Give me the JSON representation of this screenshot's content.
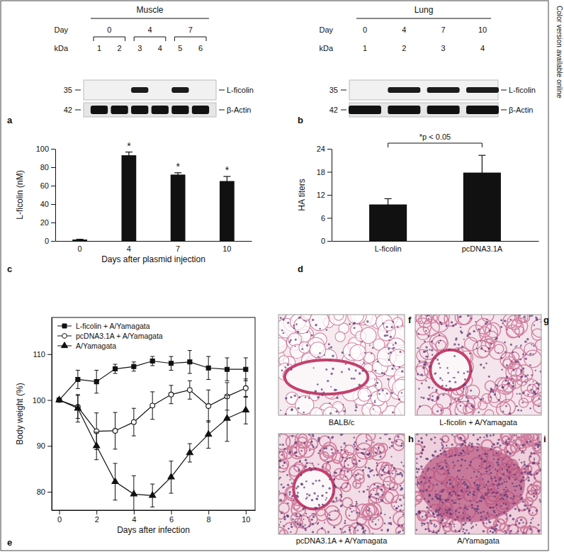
{
  "side_note": "Color version available online",
  "blots": [
    {
      "panel": "a",
      "tissue": "Muscle",
      "day_label": "Day",
      "kda_label": "kDa",
      "days": [
        0,
        4,
        7
      ],
      "lanes": [
        [
          1,
          2
        ],
        [
          3,
          4
        ],
        [
          5,
          6
        ]
      ],
      "rows": [
        {
          "kda": 35,
          "label": "L-ficolin",
          "bands": [
            false,
            false,
            true,
            false,
            true,
            false
          ]
        },
        {
          "kda": 42,
          "label": "β-Actin",
          "bands": [
            true,
            true,
            true,
            true,
            true,
            true
          ]
        }
      ]
    },
    {
      "panel": "b",
      "tissue": "Lung",
      "day_label": "Day",
      "kda_label": "kDa",
      "days": [
        0,
        4,
        7,
        10
      ],
      "lanes": [
        [
          1
        ],
        [
          2
        ],
        [
          3
        ],
        [
          4
        ]
      ],
      "rows": [
        {
          "kda": 35,
          "label": "L-ficolin",
          "bands": [
            false,
            true,
            true,
            true
          ]
        },
        {
          "kda": 42,
          "label": "β-Actin",
          "bands": [
            true,
            true,
            true,
            true
          ]
        }
      ]
    }
  ],
  "chart_data": [
    {
      "panel": "c",
      "type": "bar",
      "categories": [
        0,
        4,
        7,
        10
      ],
      "values": [
        1.5,
        93,
        72,
        65
      ],
      "errors": [
        0.3,
        3.5,
        2,
        5
      ],
      "significance": [
        null,
        "*",
        "*",
        "*"
      ],
      "ylim": [
        0,
        100
      ],
      "yticks": [
        0,
        20,
        40,
        60,
        80,
        100
      ],
      "y_label": "L-ficolin (nM)",
      "x_label": "Days after plasmid injection",
      "color": "#111111"
    },
    {
      "panel": "d",
      "type": "bar",
      "categories": [
        "L-ficolin",
        "pcDNA3.1A"
      ],
      "values": [
        9.5,
        17.8
      ],
      "errors": [
        1.5,
        4.5
      ],
      "ylim": [
        0,
        24
      ],
      "yticks": [
        0,
        6,
        12,
        18,
        24
      ],
      "y_label": "HA titers",
      "annotation": "*p < 0.05",
      "color": "#111111"
    },
    {
      "panel": "e",
      "type": "line",
      "x": [
        0,
        1,
        2,
        3,
        4,
        5,
        6,
        7,
        8,
        9,
        10
      ],
      "xlim": [
        -0.4,
        10.5
      ],
      "xticks": [
        0,
        2,
        4,
        6,
        8,
        10
      ],
      "ylim": [
        76,
        118
      ],
      "yticks": [
        80,
        90,
        100,
        110
      ],
      "y_label": "Body weight (%)",
      "x_label": "Days after infection",
      "legend": "upper left",
      "series": [
        {
          "name": "L-ficolin + A/Yamagata",
          "color": "#111111",
          "marker": "square",
          "values": [
            100,
            104.5,
            104,
            106.8,
            107.3,
            108.5,
            108,
            108.3,
            107,
            106.7,
            106.7
          ],
          "errors": [
            0,
            2,
            2.5,
            1,
            1,
            1,
            1.5,
            2.5,
            2.5,
            2.5,
            2.5
          ]
        },
        {
          "name": "pcDNA3.1A + A/Yamagata",
          "color": "#111111",
          "marker": "circle-open",
          "values": [
            100,
            98.5,
            93.2,
            93.3,
            95.2,
            98.8,
            101.2,
            102.2,
            98.7,
            100.8,
            102.6
          ],
          "errors": [
            0,
            2.5,
            4,
            4,
            3,
            3,
            2,
            2,
            3.5,
            3,
            2
          ]
        },
        {
          "name": "A/Yamagata",
          "color": "#111111",
          "marker": "triangle",
          "values": [
            100,
            98.2,
            90,
            82.2,
            79.5,
            79.2,
            83.2,
            88.5,
            92.5,
            96,
            97.8
          ],
          "errors": [
            0,
            3,
            3,
            4,
            4,
            2.5,
            3.5,
            2,
            3,
            5,
            3
          ]
        }
      ]
    }
  ],
  "histology": [
    {
      "panel": "f",
      "caption": "BALB/c"
    },
    {
      "panel": "g",
      "caption": "L-ficolin + A/Yamagata"
    },
    {
      "panel": "h",
      "caption": "pcDNA3.1A + A/Yamagata"
    },
    {
      "panel": "i",
      "caption": "A/Yamagata"
    }
  ]
}
